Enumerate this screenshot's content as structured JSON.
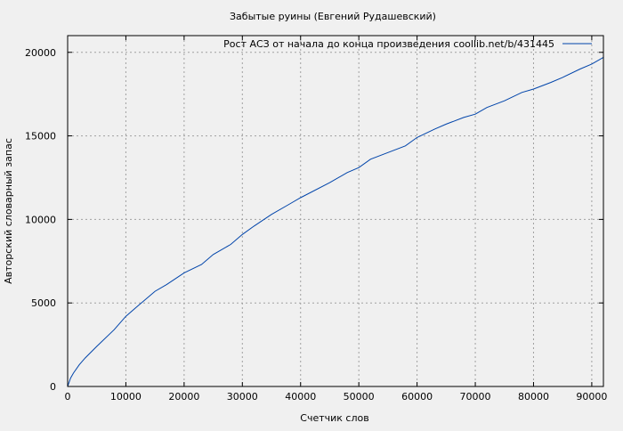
{
  "chart_data": {
    "type": "line",
    "title": "Забытые руины (Евгений Рудашевский)",
    "xlabel": "Счетчик слов",
    "ylabel": "Авторский словарный запас",
    "xlim": [
      0,
      92000
    ],
    "ylim": [
      0,
      21000
    ],
    "xticks": [
      0,
      10000,
      20000,
      30000,
      40000,
      50000,
      60000,
      70000,
      80000,
      90000
    ],
    "yticks": [
      0,
      5000,
      10000,
      15000,
      20000
    ],
    "grid": true,
    "legend_position": "top-right",
    "series": [
      {
        "name": "Рост АСЗ от начала до конца произведения coollib.net/b/431445",
        "color": "#0044aa",
        "x": [
          0,
          500,
          1000,
          2000,
          3000,
          5000,
          8000,
          10000,
          12000,
          15000,
          17000,
          20000,
          23000,
          25000,
          28000,
          30000,
          32000,
          35000,
          38000,
          40000,
          45000,
          48000,
          50000,
          52000,
          55000,
          58000,
          60000,
          63000,
          65000,
          68000,
          70000,
          72000,
          75000,
          78000,
          80000,
          83000,
          85000,
          88000,
          90000,
          92000
        ],
        "y": [
          0,
          500,
          800,
          1300,
          1700,
          2400,
          3400,
          4200,
          4800,
          5700,
          6100,
          6800,
          7300,
          7900,
          8500,
          9100,
          9600,
          10300,
          10900,
          11300,
          12200,
          12800,
          13100,
          13600,
          14000,
          14400,
          14900,
          15400,
          15700,
          16100,
          16300,
          16700,
          17100,
          17600,
          17800,
          18200,
          18500,
          19000,
          19300,
          19700
        ]
      }
    ]
  }
}
